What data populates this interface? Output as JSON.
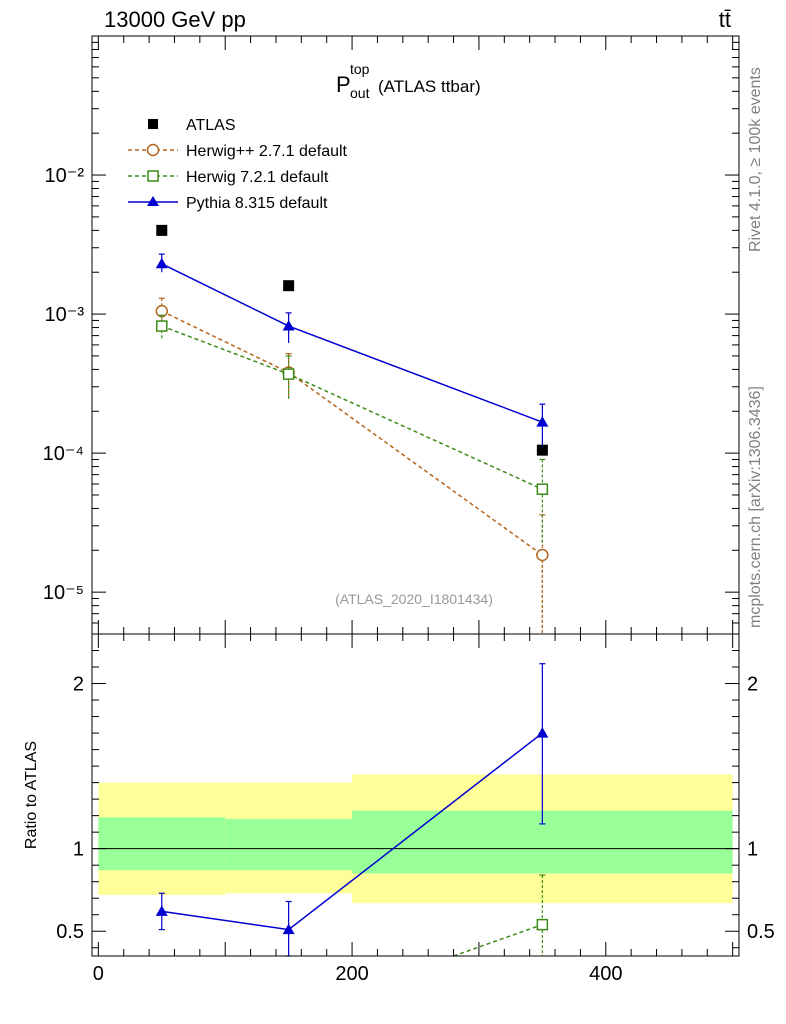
{
  "header": {
    "energy_label": "13000 GeV pp",
    "process_label": "tt̄"
  },
  "side_labels": {
    "rivet": "Rivet 4.1.0, ≥ 100k events",
    "mcplots": "mcplots.cern.ch [arXiv:1306.3436]"
  },
  "chart_data": [
    {
      "type": "line",
      "title_main": "P",
      "title_sup": "top",
      "title_sub": "out",
      "title_rest": "(ATLAS ttbar)",
      "analysis_tag": "(ATLAS_2020_I1801434)",
      "yscale": "log",
      "xlim": [
        -5,
        505
      ],
      "ylim": [
        5e-06,
        0.1
      ],
      "yticklabels": [
        "10⁻⁵",
        "10⁻⁴",
        "10⁻³",
        "10⁻²"
      ],
      "ytickvalues": [
        1e-05,
        0.0001,
        0.001,
        0.01
      ],
      "legend_position": "top-left",
      "series": [
        {
          "name": "ATLAS",
          "color": "#000000",
          "marker": "square-filled",
          "x": [
            50,
            150,
            350
          ],
          "y": [
            0.004,
            0.0016,
            0.000105
          ],
          "xerr": [
            0,
            0,
            0
          ],
          "ylow": [
            null,
            null,
            null
          ],
          "yhigh": [
            null,
            null,
            null
          ]
        },
        {
          "name": "Herwig++ 2.7.1 default",
          "color": "#b5651d",
          "marker": "circle-open",
          "dash": true,
          "x": [
            50,
            150,
            350
          ],
          "y": [
            0.00105,
            0.00038,
            1.85e-05
          ],
          "ylow": [
            0.00082,
            0.00025,
            5e-06
          ],
          "yhigh": [
            0.0013,
            0.00052,
            3.6e-05
          ]
        },
        {
          "name": "Herwig 7.2.1 default",
          "color": "#3c8c18",
          "marker": "square-open",
          "dash": true,
          "x": [
            50,
            150,
            350
          ],
          "y": [
            0.00082,
            0.00037,
            5.5e-05
          ],
          "ylow": [
            0.00065,
            0.00024,
            2.2e-05
          ],
          "yhigh": [
            0.00098,
            0.0005,
            9e-05
          ]
        },
        {
          "name": "Pythia 8.315 default",
          "color": "#0000d0",
          "marker": "triangle-filled",
          "dash": false,
          "x": [
            50,
            150,
            350
          ],
          "y": [
            0.0023,
            0.00082,
            0.000167
          ],
          "ylow": [
            0.002,
            0.00062,
            0.000115
          ],
          "yhigh": [
            0.0027,
            0.00102,
            0.000225
          ]
        }
      ]
    },
    {
      "type": "line",
      "ylabel": "Ratio to ATLAS",
      "xlim": [
        -5,
        505
      ],
      "ylim": [
        0.35,
        2.3
      ],
      "xtickvalues": [
        0,
        200,
        400
      ],
      "xticklabels": [
        "0",
        "200",
        "400"
      ],
      "ytickvalues": [
        0.5,
        1,
        2
      ],
      "yticklabels": [
        "0.5",
        "1",
        "2"
      ],
      "bands": [
        {
          "x0": 0,
          "x1": 100,
          "yellow": [
            0.72,
            1.4
          ],
          "green": [
            0.87,
            1.19
          ]
        },
        {
          "x0": 100,
          "x1": 200,
          "yellow": [
            0.73,
            1.4
          ],
          "green": [
            0.87,
            1.18
          ]
        },
        {
          "x0": 200,
          "x1": 500,
          "yellow": [
            0.67,
            1.45
          ],
          "green": [
            0.85,
            1.23
          ]
        }
      ],
      "band_colors": {
        "yellow": "#ffff99",
        "green": "#99ff99"
      },
      "series": [
        {
          "name": "Pythia 8.315 default",
          "color": "#0000d0",
          "marker": "triangle-filled",
          "x": [
            50,
            150,
            350
          ],
          "y": [
            0.62,
            0.51,
            1.7
          ],
          "ylow": [
            0.51,
            0.35,
            1.15
          ],
          "yhigh": [
            0.73,
            0.68,
            2.12
          ]
        },
        {
          "name": "Herwig 7.2.1 default",
          "color": "#3c8c18",
          "marker": "square-open",
          "dash": true,
          "x": [
            280,
            350
          ],
          "y": [
            0.35,
            0.54
          ],
          "ylow": [
            null,
            0.35
          ],
          "yhigh": [
            null,
            0.84
          ],
          "draw_marker": [
            false,
            true
          ]
        }
      ]
    }
  ]
}
